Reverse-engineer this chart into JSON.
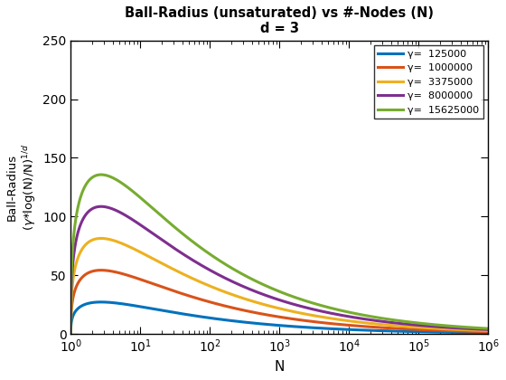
{
  "title_line1": "Ball-Radius (unsaturated) vs #-Nodes (N)",
  "title_line2": "d = 3",
  "xlabel": "N",
  "ylabel_line1": "Ball-Radius",
  "ylabel_line2": "(γ*log(N)/N)¹ᵈ",
  "d": 3,
  "gammas": [
    125000,
    1000000,
    3375000,
    8000000,
    15625000
  ],
  "colors": [
    "#0072BD",
    "#D95319",
    "#EDB120",
    "#7E2F8E",
    "#77AC30"
  ],
  "N_min": 1,
  "N_max": 1000000,
  "ylim": [
    0,
    250
  ],
  "legend_labels": [
    "γ=  125000",
    "γ=  1000000",
    "γ=  3375000",
    "γ=  8000000",
    "γ=  15625000"
  ],
  "n_points": 3000,
  "linewidth": 2.2,
  "figsize": [
    5.6,
    4.2
  ],
  "dpi": 100
}
